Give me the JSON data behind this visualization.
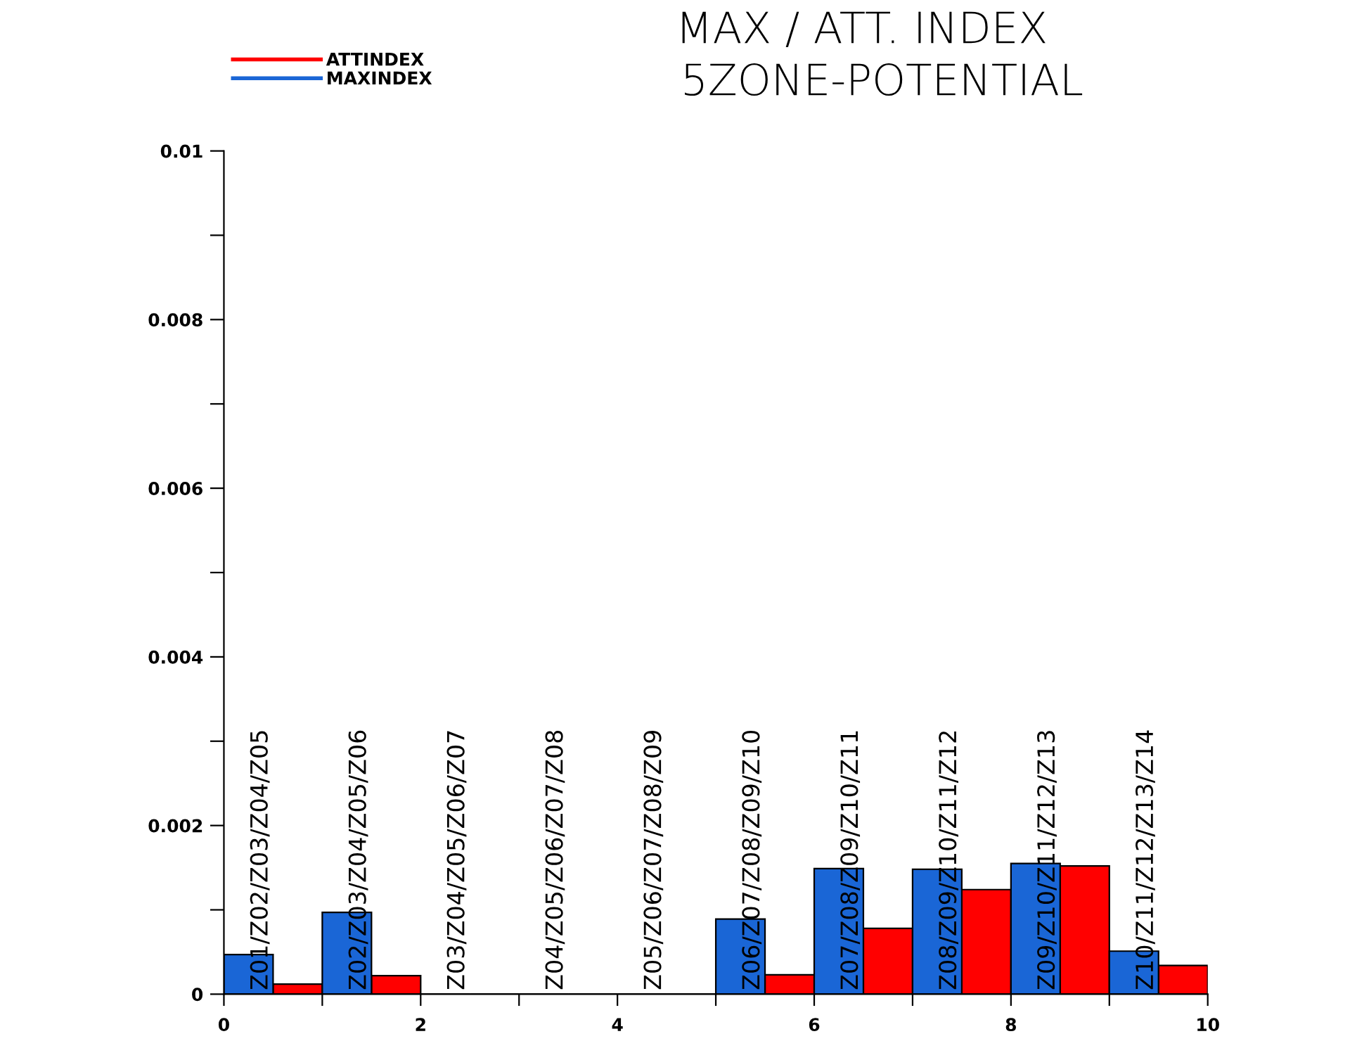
{
  "chart_data": {
    "type": "bar",
    "title": "MAX / ATT. INDEX",
    "subtitle": "5ZONE-POTENTIAL",
    "x": [
      0.5,
      1.5,
      2.5,
      3.5,
      4.5,
      5.5,
      6.5,
      7.5,
      8.5,
      9.5
    ],
    "series": [
      {
        "name": "ATTINDEX",
        "color": "#ff0000",
        "values": [
          0.00012,
          0.00022,
          0,
          0,
          0,
          0.00023,
          0.00078,
          0.00124,
          0.00152,
          0.00034
        ]
      },
      {
        "name": "MAXINDEX",
        "color": "#1a66d6",
        "values": [
          0.00047,
          0.00097,
          0,
          0,
          0,
          0.00089,
          0.00149,
          0.00148,
          0.00155,
          0.00051
        ]
      }
    ],
    "annotations": [
      {
        "text": "Z01/Z02/Z03/Z04/Z05",
        "x": 0.5,
        "y": 0
      },
      {
        "text": "Z02/Z03/Z04/Z05/Z06",
        "x": 1.5,
        "y": 0
      },
      {
        "text": "Z03/Z04/Z05/Z06/Z07",
        "x": 2.5,
        "y": 0
      },
      {
        "text": "Z04/Z05/Z06/Z07/Z08",
        "x": 3.5,
        "y": 0
      },
      {
        "text": "Z05/Z06/Z07/Z08/Z09",
        "x": 4.5,
        "y": 0
      },
      {
        "text": "Z06/Z07/Z08/Z09/Z10",
        "x": 5.5,
        "y": 0
      },
      {
        "text": "Z07/Z08/Z09/Z10/Z11",
        "x": 6.5,
        "y": 0
      },
      {
        "text": "Z08/Z09/Z10/Z11/Z12",
        "x": 7.5,
        "y": 0
      },
      {
        "text": "Z09/Z10/Z11/Z12/Z13",
        "x": 8.5,
        "y": 0
      },
      {
        "text": "Z10/Z11/Z12/Z13/Z14",
        "x": 9.5,
        "y": 0
      }
    ],
    "xlim": [
      0,
      10
    ],
    "xticks": [
      0,
      {
        "value": 1,
        "label": null
      },
      2,
      {
        "value": 3,
        "label": null
      },
      4,
      {
        "value": 5,
        "label": null
      },
      6,
      {
        "value": 7,
        "label": null
      },
      8,
      {
        "value": 9,
        "label": null
      },
      10
    ],
    "ylim": [
      0,
      0.01
    ],
    "yticks": [
      0,
      {
        "value": 0.001,
        "label": null
      },
      0.002,
      {
        "value": 0.003,
        "label": null
      },
      0.004,
      {
        "value": 0.005,
        "label": null
      },
      0.006,
      {
        "value": 0.007,
        "label": null
      },
      0.008,
      {
        "value": 0.009,
        "label": null
      },
      0.01
    ],
    "legend": "top left",
    "grid": false
  }
}
